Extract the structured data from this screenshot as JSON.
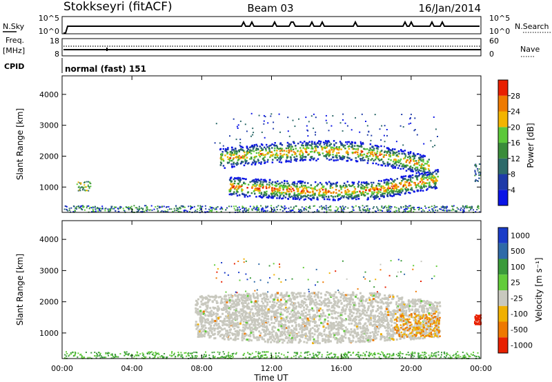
{
  "header": {
    "station": "Stokkseyri (fitACF)",
    "beam": "Beam 03",
    "date": "16/Jan/2014"
  },
  "top_panels": {
    "nsky_label": "N.Sky",
    "nsky_tick_top": "10^5",
    "nsky_tick_bottom": "10^0",
    "nsearch_label": "N.Search",
    "freq_label_1": "Freq.",
    "freq_label_2": "[MHz]",
    "freq_tick_top": "18",
    "freq_tick_bottom": "8",
    "nave_tick_top": "60",
    "nave_tick_bottom": "0",
    "nave_label": "Nave",
    "cpid_label": "CPID",
    "cpid_text": "normal (fast) 151"
  },
  "power_panel": {
    "ylabel": "Slant Range [km]",
    "cbar_label": "Power [dB]"
  },
  "velocity_panel": {
    "ylabel": "Slant Range [km]",
    "cbar_label": "Velocity [m s⁻¹]"
  },
  "xaxis_label": "Time UT",
  "chart_data": [
    {
      "type": "heatmap",
      "title": "Power",
      "x": [
        "00:00",
        "04:00",
        "08:00",
        "12:00",
        "16:00",
        "20:00",
        "00:00"
      ],
      "xlabel": "Time UT",
      "ylabel": "Slant Range [km]",
      "y_ticks": [
        1000,
        2000,
        3000,
        4000
      ],
      "xlim_hours": [
        0,
        24
      ],
      "ylim_km": [
        180,
        4600
      ],
      "colorbar": {
        "label": "Power [dB]",
        "ticks": [
          4,
          8,
          12,
          16,
          20,
          24,
          28
        ],
        "range": [
          0,
          30
        ],
        "colors": [
          "#0a14e6",
          "#1e3aa8",
          "#2d6a6a",
          "#3a8c3a",
          "#5cc83a",
          "#f2b400",
          "#ee7a00",
          "#e82000"
        ]
      },
      "features": [
        {
          "name": "near-range scatter",
          "t": [
            0,
            24
          ],
          "range_km": [
            200,
            400
          ]
        },
        {
          "name": "lower band",
          "t": [
            9.5,
            21.5
          ],
          "range_km": [
            800,
            1300
          ],
          "peak_db": 30
        },
        {
          "name": "upper band",
          "t": [
            9,
            21
          ],
          "range_km": [
            1700,
            2300
          ],
          "peak_db": 28
        }
      ]
    },
    {
      "type": "heatmap",
      "title": "Velocity",
      "x": [
        "00:00",
        "04:00",
        "08:00",
        "12:00",
        "16:00",
        "20:00",
        "00:00"
      ],
      "xlabel": "Time UT",
      "ylabel": "Slant Range [km]",
      "y_ticks": [
        1000,
        2000,
        3000,
        4000
      ],
      "xlim_hours": [
        0,
        24
      ],
      "ylim_km": [
        180,
        4600
      ],
      "colorbar": {
        "label": "Velocity [m s⁻¹]",
        "ticks": [
          "1000",
          "500",
          "100",
          "25",
          "-25",
          "-100",
          "-500",
          "-1000"
        ],
        "colors": [
          "#1a3cc8",
          "#2e6aa8",
          "#3a9a3a",
          "#62cc3a",
          "#c8c8be",
          "#f0b000",
          "#ee7800",
          "#e82000"
        ]
      },
      "features": [
        {
          "name": "ground scatter (grey)",
          "t": [
            7.5,
            22
          ],
          "range_km": [
            700,
            2500
          ],
          "velocity": 0
        },
        {
          "name": "negative velocity patch",
          "t": [
            19,
            21.5
          ],
          "range_km": [
            900,
            1600
          ],
          "velocity": -300
        }
      ]
    }
  ]
}
